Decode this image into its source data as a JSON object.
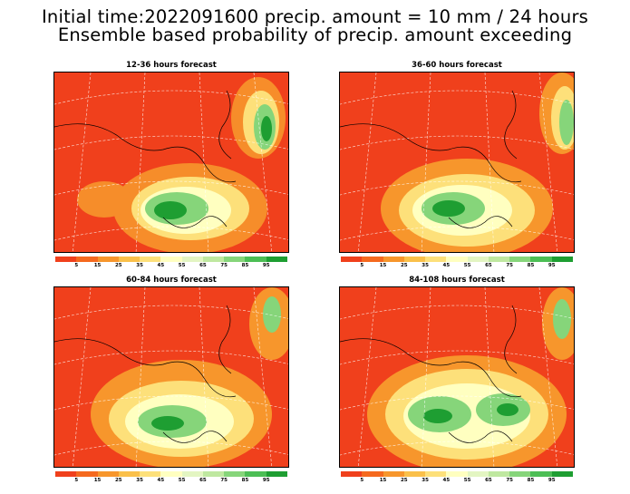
{
  "title_line1": "Initial time:2022091600 precip. amount = 10 mm / 24 hours",
  "title_line2": "Ensemble based probability of precip. amount exceeding",
  "panels": [
    {
      "title": "12-36 hours forecast"
    },
    {
      "title": "36-60 hours forecast"
    },
    {
      "title": "60-84 hours forecast"
    },
    {
      "title": "84-108 hours forecast"
    }
  ],
  "colorbar": {
    "labels": [
      "5",
      "15",
      "25",
      "35",
      "45",
      "55",
      "65",
      "75",
      "85",
      "95"
    ],
    "colors": [
      "#f0401c",
      "#f5691e",
      "#f7962c",
      "#fac04a",
      "#fde07a",
      "#ffffc0",
      "#e3f5c2",
      "#bfe8a0",
      "#86d57a",
      "#4cbe55",
      "#1e9e32"
    ]
  }
}
